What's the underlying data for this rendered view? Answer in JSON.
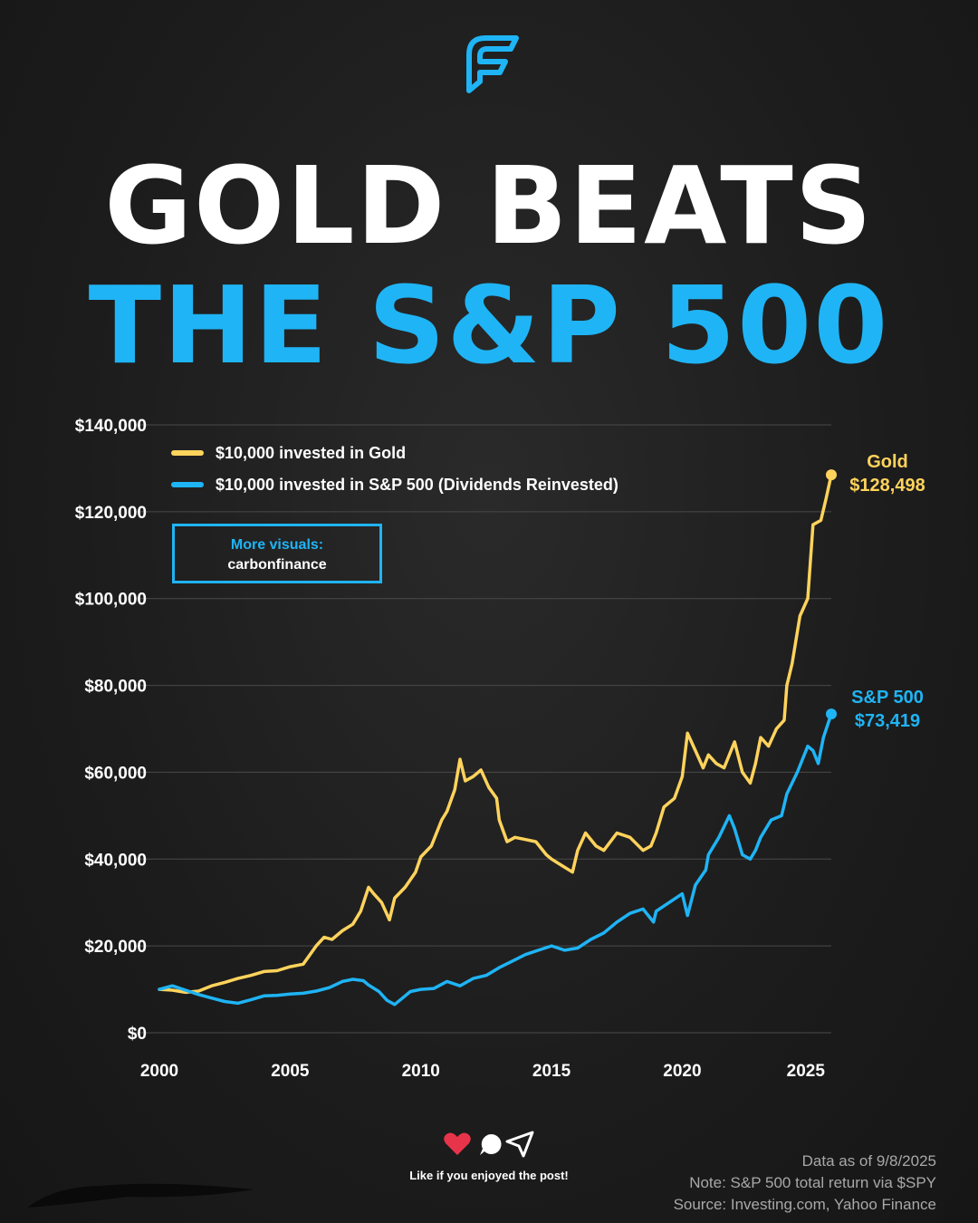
{
  "header": {
    "logo_icon": "carbon-finance-f-logo",
    "title_line1": "GOLD BEATS",
    "title_line2": "THE S&P 500",
    "title_line1_color": "#ffffff",
    "title_line2_color": "#1fb4f5"
  },
  "promo": {
    "line1": "More visuals:",
    "line2": "carbonfinance"
  },
  "chart_data": {
    "type": "line",
    "xlim": [
      2000,
      2025.7
    ],
    "ylim": [
      0,
      140000
    ],
    "x_ticks": [
      2000,
      2005,
      2010,
      2015,
      2020,
      2025
    ],
    "x_tick_labels": [
      "2000",
      "2005",
      "2010",
      "2015",
      "2020",
      "2025"
    ],
    "y_ticks": [
      0,
      20000,
      40000,
      60000,
      80000,
      100000,
      120000,
      140000
    ],
    "y_tick_labels": [
      "$0",
      "$20,000",
      "$40,000",
      "$60,000",
      "$80,000",
      "$100,000",
      "$120,000",
      "$140,000"
    ],
    "grid": true,
    "legend": "top-left",
    "series": [
      {
        "name": "$10,000 invested in Gold",
        "color": "#ffd35c",
        "end_label_name": "Gold",
        "end_label_value": "$128,498",
        "x": [
          2000,
          2000.5,
          2001,
          2001.5,
          2002,
          2002.5,
          2003,
          2003.5,
          2004,
          2004.5,
          2005,
          2005.5,
          2006,
          2006.3,
          2006.6,
          2007,
          2007.4,
          2007.7,
          2008,
          2008.2,
          2008.5,
          2008.8,
          2009,
          2009.4,
          2009.8,
          2010,
          2010.4,
          2010.8,
          2011,
          2011.3,
          2011.5,
          2011.7,
          2012,
          2012.3,
          2012.6,
          2012.9,
          2013,
          2013.3,
          2013.6,
          2014,
          2014.4,
          2014.8,
          2015,
          2015.4,
          2015.8,
          2016,
          2016.3,
          2016.7,
          2017,
          2017.5,
          2018,
          2018.5,
          2018.8,
          2019,
          2019.3,
          2019.7,
          2020,
          2020.2,
          2020.5,
          2020.8,
          2021,
          2021.3,
          2021.6,
          2022,
          2022.3,
          2022.6,
          2022.8,
          2023,
          2023.3,
          2023.6,
          2023.9,
          2024,
          2024.2,
          2024.5,
          2024.8,
          2025,
          2025.3,
          2025.5,
          2025.7
        ],
        "y": [
          10000,
          9800,
          9300,
          9600,
          10800,
          11600,
          12500,
          13200,
          14100,
          14300,
          15200,
          15800,
          20000,
          22000,
          21500,
          23500,
          25000,
          28000,
          33500,
          32000,
          30000,
          26000,
          31000,
          33500,
          37000,
          40500,
          43000,
          49000,
          51000,
          56000,
          63000,
          58000,
          59000,
          60500,
          56500,
          54000,
          49000,
          44000,
          45000,
          44500,
          44000,
          41000,
          40000,
          38500,
          37000,
          42000,
          46000,
          43000,
          42000,
          46000,
          45000,
          42000,
          43000,
          46000,
          52000,
          54000,
          59000,
          69000,
          65000,
          61000,
          64000,
          62000,
          61000,
          67000,
          60000,
          57500,
          62000,
          68000,
          66000,
          70000,
          72000,
          80000,
          85000,
          96000,
          100000,
          117000,
          118000,
          123000,
          128498
        ]
      },
      {
        "name": "$10,000 invested in S&P 500 (Dividends Reinvested)",
        "color": "#1fb4f5",
        "end_label_name": "S&P 500",
        "end_label_value": "$73,419",
        "x": [
          2000,
          2000.5,
          2001,
          2001.5,
          2002,
          2002.5,
          2003,
          2003.5,
          2004,
          2004.5,
          2005,
          2005.5,
          2006,
          2006.5,
          2007,
          2007.4,
          2007.8,
          2008,
          2008.4,
          2008.7,
          2009,
          2009.3,
          2009.6,
          2010,
          2010.5,
          2011,
          2011.5,
          2012,
          2012.5,
          2013,
          2013.5,
          2014,
          2014.5,
          2015,
          2015.5,
          2016,
          2016.5,
          2017,
          2017.5,
          2018,
          2018.5,
          2018.9,
          2019,
          2019.5,
          2020,
          2020.2,
          2020.5,
          2020.9,
          2021,
          2021.4,
          2021.8,
          2022,
          2022.3,
          2022.6,
          2022.8,
          2023,
          2023.4,
          2023.8,
          2024,
          2024.4,
          2024.8,
          2025,
          2025.2,
          2025.4,
          2025.7
        ],
        "y": [
          10000,
          10800,
          9800,
          8800,
          8000,
          7200,
          6800,
          7600,
          8500,
          8600,
          8900,
          9100,
          9600,
          10400,
          11800,
          12300,
          12000,
          11000,
          9500,
          7500,
          6500,
          8000,
          9500,
          10000,
          10200,
          11800,
          10800,
          12500,
          13200,
          15000,
          16500,
          18000,
          19000,
          20000,
          19000,
          19500,
          21500,
          23000,
          25500,
          27500,
          28500,
          25500,
          28000,
          30000,
          32000,
          27000,
          34000,
          37500,
          41000,
          45000,
          50000,
          47000,
          41000,
          40000,
          42000,
          45000,
          49000,
          50000,
          55000,
          60000,
          66000,
          65000,
          62000,
          68000,
          73419
        ]
      }
    ]
  },
  "footer": {
    "icons": [
      "heart-icon",
      "comment-icon",
      "share-icon"
    ],
    "like_text": "Like if you enjoyed the post!",
    "note1": "Data as of 9/8/2025",
    "note2": "Note: S&P 500 total return via $SPY",
    "note3": "Source: Investing.com, Yahoo Finance"
  }
}
